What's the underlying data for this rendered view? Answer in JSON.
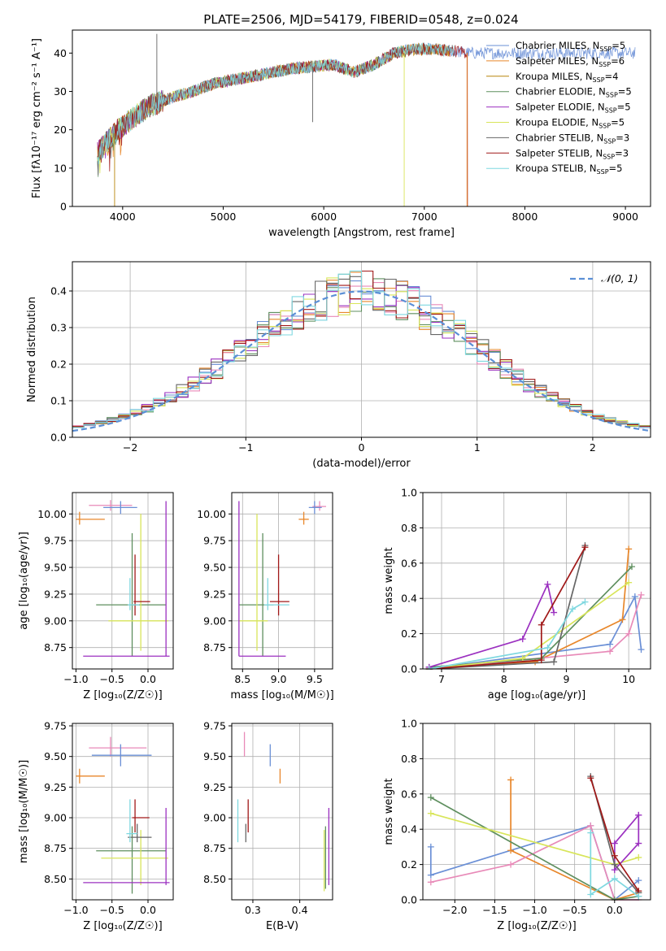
{
  "figure_title": "PLATE=2506, MJD=54179, FIBERID=0548, z=0.024",
  "palette": {
    "chabrier_miles": "#6a8fd6",
    "salpeter_miles": "#e8872b",
    "kroupa_miles": "#b8860b",
    "chabrier_elodie": "#5f8f5f",
    "salpeter_elodie": "#9b30c0",
    "kroupa_elodie": "#d8e55a",
    "chabrier_stelib": "#666666",
    "salpeter_stelib": "#a01818",
    "kroupa_stelib": "#7fd8e0",
    "pink": "#e88ab8",
    "normal_curve": "#5b8fd6"
  },
  "chart_data": [
    {
      "id": "spectrum",
      "type": "line",
      "title": "PLATE=2506, MJD=54179, FIBERID=0548, z=0.024",
      "xlabel": "wavelength [Angstrom, rest frame]",
      "ylabel": "Flux [fλ10⁻¹⁷ erg cm⁻² s⁻¹ A⁻¹]",
      "xlim": [
        3500,
        9250
      ],
      "ylim": [
        0,
        46
      ],
      "xticks": [
        4000,
        5000,
        6000,
        7000,
        8000,
        9000
      ],
      "yticks": [
        0,
        10,
        20,
        30,
        40
      ],
      "grid": false,
      "legend_position": "top-right",
      "continuum": {
        "x": [
          3750,
          3850,
          3950,
          4050,
          4150,
          4250,
          4350,
          4500,
          4700,
          4900,
          5100,
          5300,
          5500,
          5700,
          5900,
          6100,
          6300,
          6500,
          6700,
          6900,
          7100,
          7300,
          7450
        ],
        "y": [
          14,
          17,
          20,
          22,
          24,
          26,
          27,
          28.5,
          30,
          32,
          33,
          34,
          35,
          36,
          36.5,
          37,
          35,
          37,
          40,
          41,
          41,
          40.5,
          40
        ]
      },
      "series": [
        {
          "name": "Chabrier MILES, N_SSP=5",
          "label_main": "Chabrier MILES, N",
          "label_sub": "SSP",
          "label_tail": "=5",
          "color_key": "chabrier_miles",
          "x": [
            3750,
            9100
          ]
        },
        {
          "name": "Salpeter MILES, N_SSP=6",
          "label_main": "Salpeter MILES, N",
          "label_sub": "SSP",
          "label_tail": "=6",
          "color_key": "salpeter_miles",
          "x": [
            3750,
            7250
          ]
        },
        {
          "name": "Kroupa MILES, N_SSP=4",
          "label_main": "Kroupa MILES, N",
          "label_sub": "SSP",
          "label_tail": "=4",
          "color_key": "kroupa_miles",
          "x": [
            3750,
            7250
          ]
        },
        {
          "name": "Chabrier ELODIE, N_SSP=5",
          "label_main": "Chabrier ELODIE, N",
          "label_sub": "SSP",
          "label_tail": "=5",
          "color_key": "chabrier_elodie",
          "x": [
            3750,
            6800
          ]
        },
        {
          "name": "Salpeter ELODIE, N_SSP=5",
          "label_main": "Salpeter ELODIE, N",
          "label_sub": "SSP",
          "label_tail": "=5",
          "color_key": "salpeter_elodie",
          "x": [
            3750,
            6800
          ]
        },
        {
          "name": "Kroupa ELODIE, N_SSP=5",
          "label_main": "Kroupa ELODIE, N",
          "label_sub": "SSP",
          "label_tail": "=5",
          "color_key": "kroupa_elodie",
          "x": [
            3750,
            6800
          ]
        },
        {
          "name": "Chabrier STELIB, N_SSP=3",
          "label_main": "Chabrier STELIB, N",
          "label_sub": "SSP",
          "label_tail": "=3",
          "color_key": "chabrier_stelib",
          "x": [
            3750,
            7300
          ]
        },
        {
          "name": "Salpeter STELIB, N_SSP=3",
          "label_main": "Salpeter STELIB, N",
          "label_sub": "SSP",
          "label_tail": "=3",
          "color_key": "salpeter_stelib",
          "x": [
            3750,
            7430
          ]
        },
        {
          "name": "Kroupa STELIB, N_SSP=5",
          "label_main": "Kroupa STELIB, N",
          "label_sub": "SSP",
          "label_tail": "=5",
          "color_key": "kroupa_stelib",
          "x": [
            3750,
            7300
          ]
        }
      ]
    },
    {
      "id": "residuals",
      "type": "line",
      "xlabel": "(data-model)/error",
      "ylabel": "Normed distribution",
      "xlim": [
        -2.5,
        2.5
      ],
      "ylim": [
        0,
        0.48
      ],
      "xticks": [
        -2,
        -1,
        0,
        1,
        2
      ],
      "yticks": [
        0.0,
        0.1,
        0.2,
        0.3,
        0.4
      ],
      "grid": true,
      "legend_position": "top-right",
      "legend_label": "𝒩(0, 1)",
      "bin_width": 0.1,
      "histogram_colors": [
        "chabrier_miles",
        "salpeter_miles",
        "pink",
        "chabrier_elodie",
        "salpeter_elodie",
        "kroupa_elodie",
        "chabrier_stelib",
        "salpeter_stelib",
        "kroupa_stelib"
      ]
    },
    {
      "id": "age_vs_Z",
      "type": "scatter",
      "xlabel": "Z [log₁₀(Z/Z☉)]",
      "ylabel": "age  [log₁₀(age/yr)]",
      "xlim": [
        -1.05,
        0.35
      ],
      "ylim": [
        8.55,
        10.2
      ],
      "xticks": [
        -1.0,
        -0.5,
        0.0
      ],
      "yticks": [
        8.75,
        9.0,
        9.25,
        9.5,
        9.75,
        10.0
      ],
      "grid": true,
      "points": [
        {
          "c": "salpeter_miles",
          "x": -0.95,
          "y": 9.95,
          "xl": -1.0,
          "xh": -0.6,
          "yl": 9.9,
          "yh": 10.02
        },
        {
          "c": "pink",
          "x": -0.52,
          "y": 10.08,
          "xl": -0.82,
          "xh": -0.22,
          "yl": 10.03,
          "yh": 10.13
        },
        {
          "c": "chabrier_miles",
          "x": -0.38,
          "y": 10.06,
          "xl": -0.62,
          "xh": -0.15,
          "yl": 10.0,
          "yh": 10.12
        },
        {
          "c": "chabrier_elodie",
          "x": -0.22,
          "y": 9.15,
          "xl": -0.72,
          "xh": 0.25,
          "yl": 8.67,
          "yh": 9.82
        },
        {
          "c": "kroupa_elodie",
          "x": -0.1,
          "y": 9.0,
          "xl": -0.55,
          "xh": 0.28,
          "yl": 8.72,
          "yh": 10.0
        },
        {
          "c": "salpeter_elodie",
          "x": 0.25,
          "y": 8.67,
          "xl": -0.9,
          "xh": 0.3,
          "yl": 8.67,
          "yh": 10.12
        },
        {
          "c": "salpeter_stelib",
          "x": -0.18,
          "y": 9.18,
          "xl": -0.2,
          "xh": 0.03,
          "yl": 9.05,
          "yh": 9.62
        },
        {
          "c": "kroupa_stelib",
          "x": -0.25,
          "y": 9.15,
          "xl": -0.28,
          "xh": -0.12,
          "yl": 9.1,
          "yh": 9.4
        }
      ]
    },
    {
      "id": "age_vs_mass",
      "type": "scatter",
      "xlabel": "mass [log₁₀(M/M☉)]",
      "xlim": [
        8.35,
        9.75
      ],
      "ylim": [
        8.55,
        10.2
      ],
      "xticks": [
        8.5,
        9.0,
        9.5
      ],
      "yticks": [
        8.75,
        9.0,
        9.25,
        9.5,
        9.75,
        10.0
      ],
      "grid": true,
      "points": [
        {
          "c": "salpeter_miles",
          "x": 9.35,
          "y": 9.95,
          "xl": 9.28,
          "xh": 9.42,
          "yl": 9.9,
          "yh": 10.02
        },
        {
          "c": "pink",
          "x": 9.57,
          "y": 10.07,
          "xl": 9.47,
          "xh": 9.66,
          "yl": 10.03,
          "yh": 10.12
        },
        {
          "c": "chabrier_miles",
          "x": 9.5,
          "y": 10.06,
          "xl": 9.42,
          "xh": 9.6,
          "yl": 10.0,
          "yh": 10.12
        },
        {
          "c": "chabrier_elodie",
          "x": 8.78,
          "y": 9.15,
          "xl": 8.45,
          "xh": 8.93,
          "yl": 8.67,
          "yh": 9.82
        },
        {
          "c": "kroupa_elodie",
          "x": 8.7,
          "y": 9.0,
          "xl": 8.45,
          "xh": 8.85,
          "yl": 8.72,
          "yh": 10.0
        },
        {
          "c": "salpeter_elodie",
          "x": 8.45,
          "y": 8.67,
          "xl": 8.45,
          "xh": 9.1,
          "yl": 8.67,
          "yh": 10.12
        },
        {
          "c": "salpeter_stelib",
          "x": 9.0,
          "y": 9.18,
          "xl": 8.88,
          "xh": 9.15,
          "yl": 9.05,
          "yh": 9.62
        },
        {
          "c": "kroupa_stelib",
          "x": 8.85,
          "y": 9.15,
          "xl": 8.8,
          "xh": 9.15,
          "yl": 9.1,
          "yh": 9.4
        }
      ]
    },
    {
      "id": "weight_vs_age",
      "type": "line",
      "xlabel": "age  [log₁₀(age/yr)]",
      "ylabel": "mass weight",
      "xlim": [
        6.7,
        10.35
      ],
      "ylim": [
        0,
        1.0
      ],
      "xticks": [
        7,
        8,
        9,
        10
      ],
      "yticks": [
        0.0,
        0.2,
        0.4,
        0.6,
        0.8,
        1.0
      ],
      "grid": true,
      "series": [
        {
          "c": "chabrier_miles",
          "x": [
            6.8,
            9.7,
            10.1,
            10.2
          ],
          "y": [
            0.0,
            0.14,
            0.41,
            0.11
          ]
        },
        {
          "c": "salpeter_miles",
          "x": [
            6.8,
            8.5,
            9.9,
            10.0
          ],
          "y": [
            0.0,
            0.04,
            0.28,
            0.68
          ]
        },
        {
          "c": "pink",
          "x": [
            6.8,
            9.7,
            10.0,
            10.2
          ],
          "y": [
            0.0,
            0.1,
            0.2,
            0.42
          ]
        },
        {
          "c": "chabrier_elodie",
          "x": [
            6.8,
            8.6,
            10.05
          ],
          "y": [
            0.01,
            0.06,
            0.58
          ]
        },
        {
          "c": "kroupa_elodie",
          "x": [
            6.8,
            8.3,
            10.0
          ],
          "y": [
            0.0,
            0.06,
            0.49
          ]
        },
        {
          "c": "salpeter_elodie",
          "x": [
            6.8,
            8.3,
            8.7,
            8.8
          ],
          "y": [
            0.01,
            0.17,
            0.48,
            0.32
          ]
        },
        {
          "c": "chabrier_stelib",
          "x": [
            6.8,
            8.8,
            9.3
          ],
          "y": [
            0.0,
            0.04,
            0.7
          ]
        },
        {
          "c": "salpeter_stelib",
          "x": [
            6.8,
            8.6,
            8.6,
            9.3
          ],
          "y": [
            0.0,
            0.05,
            0.25,
            0.69
          ]
        },
        {
          "c": "kroupa_stelib",
          "x": [
            6.8,
            8.7,
            9.1,
            9.3
          ],
          "y": [
            0.0,
            0.12,
            0.34,
            0.38
          ]
        }
      ]
    },
    {
      "id": "mass_vs_Z",
      "type": "scatter",
      "xlabel": "Z [log₁₀(Z/Z☉)]",
      "ylabel": "mass [log₁₀(M/M☉)]",
      "xlim": [
        -1.05,
        0.35
      ],
      "ylim": [
        8.33,
        9.77
      ],
      "xticks": [
        -1.0,
        -0.5,
        0.0
      ],
      "yticks": [
        8.5,
        8.75,
        9.0,
        9.25,
        9.5,
        9.75
      ],
      "grid": true,
      "points": [
        {
          "c": "salpeter_miles",
          "x": -0.95,
          "y": 9.34,
          "xl": -1.0,
          "xh": -0.6,
          "yl": 9.28,
          "yh": 9.4
        },
        {
          "c": "pink",
          "x": -0.52,
          "y": 9.57,
          "xl": -0.82,
          "xh": -0.02,
          "yl": 9.5,
          "yh": 9.66
        },
        {
          "c": "chabrier_miles",
          "x": -0.38,
          "y": 9.51,
          "xl": -0.78,
          "xh": 0.05,
          "yl": 9.42,
          "yh": 9.6
        },
        {
          "c": "chabrier_elodie",
          "x": -0.22,
          "y": 8.73,
          "xl": -0.72,
          "xh": 0.25,
          "yl": 8.38,
          "yh": 8.93
        },
        {
          "c": "kroupa_elodie",
          "x": -0.1,
          "y": 8.67,
          "xl": -0.65,
          "xh": 0.28,
          "yl": 8.45,
          "yh": 8.9
        },
        {
          "c": "salpeter_elodie",
          "x": 0.25,
          "y": 8.47,
          "xl": -0.9,
          "xh": 0.3,
          "yl": 8.45,
          "yh": 9.08
        },
        {
          "c": "salpeter_stelib",
          "x": -0.18,
          "y": 9.0,
          "xl": -0.22,
          "xh": 0.02,
          "yl": 8.88,
          "yh": 9.15
        },
        {
          "c": "chabrier_stelib",
          "x": -0.15,
          "y": 8.84,
          "xl": -0.28,
          "xh": 0.05,
          "yl": 8.8,
          "yh": 8.95
        },
        {
          "c": "kroupa_stelib",
          "x": -0.25,
          "y": 8.87,
          "xl": -0.3,
          "xh": -0.15,
          "yl": 8.8,
          "yh": 9.15
        }
      ]
    },
    {
      "id": "mass_vs_ebv",
      "type": "scatter",
      "xlabel": "E(B-V)",
      "xlim": [
        0.255,
        0.47
      ],
      "ylim": [
        8.33,
        9.77
      ],
      "xticks": [
        0.3,
        0.4
      ],
      "yticks": [
        8.5,
        8.75,
        9.0,
        9.25,
        9.5,
        9.75
      ],
      "grid": true,
      "points": [
        {
          "c": "pink",
          "x": 0.282,
          "y": 9.57,
          "yl": 9.5,
          "yh": 9.7
        },
        {
          "c": "chabrier_miles",
          "x": 0.337,
          "y": 9.51,
          "yl": 9.42,
          "yh": 9.6
        },
        {
          "c": "salpeter_miles",
          "x": 0.358,
          "y": 9.34,
          "yl": 9.28,
          "yh": 9.4
        },
        {
          "c": "kroupa_stelib",
          "x": 0.268,
          "y": 8.87,
          "yl": 8.8,
          "yh": 9.15
        },
        {
          "c": "chabrier_stelib",
          "x": 0.285,
          "y": 8.84,
          "yl": 8.8,
          "yh": 8.95
        },
        {
          "c": "salpeter_stelib",
          "x": 0.29,
          "y": 9.0,
          "yl": 8.88,
          "yh": 9.15
        },
        {
          "c": "kroupa_elodie",
          "x": 0.452,
          "y": 8.67,
          "yl": 8.4,
          "yh": 8.9
        },
        {
          "c": "chabrier_elodie",
          "x": 0.455,
          "y": 8.73,
          "yl": 8.42,
          "yh": 8.93
        },
        {
          "c": "salpeter_elodie",
          "x": 0.462,
          "y": 8.47,
          "yl": 8.45,
          "yh": 9.08
        }
      ]
    },
    {
      "id": "weight_vs_Z",
      "type": "line",
      "xlabel": "Z [log₁₀(Z/Z☉)]",
      "ylabel": "mass weight",
      "xlim": [
        -2.4,
        0.45
      ],
      "ylim": [
        0,
        1.0
      ],
      "xticks": [
        -2.0,
        -1.5,
        -1.0,
        -0.5,
        0.0
      ],
      "yticks": [
        0.0,
        0.2,
        0.4,
        0.6,
        0.8,
        1.0
      ],
      "grid": true,
      "series": [
        {
          "c": "chabrier_miles",
          "x": [
            -2.3,
            -2.3,
            -0.3,
            0.0,
            0.3
          ],
          "y": [
            0.3,
            0.14,
            0.42,
            0.0,
            0.11
          ]
        },
        {
          "c": "salpeter_miles",
          "x": [
            -1.3,
            -1.3,
            0.0,
            0.3
          ],
          "y": [
            0.68,
            0.28,
            0.0,
            0.04
          ]
        },
        {
          "c": "pink",
          "x": [
            -2.3,
            -1.3,
            -0.3,
            0.0,
            0.3
          ],
          "y": [
            0.1,
            0.2,
            0.42,
            0.0,
            0.0
          ]
        },
        {
          "c": "chabrier_elodie",
          "x": [
            -2.3,
            0.0,
            0.3
          ],
          "y": [
            0.58,
            0.0,
            0.02
          ]
        },
        {
          "c": "kroupa_elodie",
          "x": [
            -2.3,
            0.0,
            0.3
          ],
          "y": [
            0.49,
            0.2,
            0.24
          ]
        },
        {
          "c": "salpeter_elodie",
          "x": [
            0.3,
            0.3,
            0.0,
            0.0,
            0.3
          ],
          "y": [
            0.48,
            0.32,
            0.17,
            0.32,
            0.48
          ]
        },
        {
          "c": "chabrier_stelib",
          "x": [
            -0.3,
            0.0,
            0.3
          ],
          "y": [
            0.7,
            0.2,
            0.04
          ]
        },
        {
          "c": "salpeter_stelib",
          "x": [
            -0.3,
            0.0,
            0.3
          ],
          "y": [
            0.69,
            0.25,
            0.05
          ]
        },
        {
          "c": "kroupa_stelib",
          "x": [
            -0.3,
            -0.3,
            0.0,
            0.3
          ],
          "y": [
            0.38,
            0.03,
            0.12,
            0.02
          ]
        }
      ]
    }
  ]
}
